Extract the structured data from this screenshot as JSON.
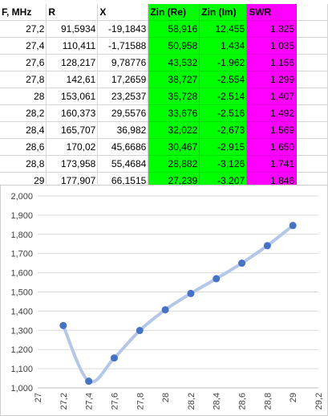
{
  "table": {
    "headers": [
      "F, MHz",
      "R",
      "X",
      "Zin (Re)",
      "Zin (Im)",
      "SWR"
    ],
    "rows": [
      [
        "27,2",
        "91,5934",
        "-19,1843",
        "58,916",
        "12,455",
        "1,325"
      ],
      [
        "27,4",
        "110,411",
        "-1,71588",
        "50,958",
        "1,434",
        "1,035"
      ],
      [
        "27,6",
        "128,217",
        "9,78776",
        "43,532",
        "-1,962",
        "1,156"
      ],
      [
        "27,8",
        "142,61",
        "17,2659",
        "38,727",
        "-2,554",
        "1,299"
      ],
      [
        "28",
        "153,061",
        "23,2537",
        "35,728",
        "-2,514",
        "1,407"
      ],
      [
        "28,2",
        "160,373",
        "29,5576",
        "33,676",
        "-2,516",
        "1,492"
      ],
      [
        "28,4",
        "165,707",
        "36,982",
        "32,022",
        "-2,673",
        "1,569"
      ],
      [
        "28,6",
        "170,02",
        "45,6686",
        "30,467",
        "-2,915",
        "1,650"
      ],
      [
        "28,8",
        "173,958",
        "55,4684",
        "28,882",
        "-3,126",
        "1,741"
      ],
      [
        "29",
        "177,907",
        "66,1515",
        "27,239",
        "-3,207",
        "1,846"
      ]
    ],
    "highlight_colors": {
      "zin": "#00ff00",
      "swr": "#ff00ff"
    }
  },
  "chart_data": {
    "type": "scatter",
    "x": [
      27.2,
      27.4,
      27.6,
      27.8,
      28.0,
      28.2,
      28.4,
      28.6,
      28.8,
      29.0
    ],
    "series": [
      {
        "values": [
          1.325,
          1.035,
          1.156,
          1.299,
          1.407,
          1.492,
          1.569,
          1.65,
          1.741,
          1.846
        ]
      }
    ],
    "xlim": [
      27,
      29.2
    ],
    "ylim": [
      1.0,
      2.0
    ],
    "x_ticks": [
      "27",
      "27,2",
      "27,4",
      "27,6",
      "27,8",
      "28",
      "28,2",
      "28,4",
      "28,6",
      "28,8",
      "29",
      "29,2"
    ],
    "y_ticks": [
      "1,000",
      "1,100",
      "1,200",
      "1,300",
      "1,400",
      "1,500",
      "1,600",
      "1,700",
      "1,800",
      "1,900",
      "2,000"
    ],
    "grid": "horizontal",
    "smooth_line": true,
    "colors": {
      "marker": "#4472c4",
      "line": "#b4c7e7",
      "grid": "#d9d9d9"
    }
  }
}
